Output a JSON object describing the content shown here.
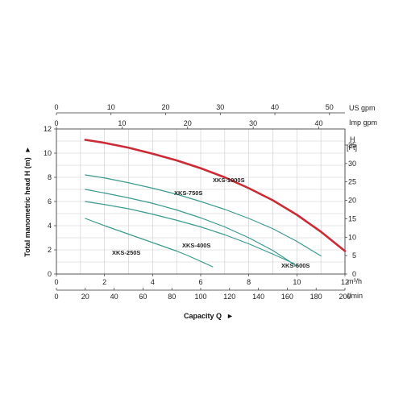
{
  "chart_data": {
    "type": "line",
    "title": "",
    "xlabel": "Capacity Q",
    "xlabel_arrow": "►",
    "ylabel": "Total manometric head H (m)",
    "ylabel_arrow": "►",
    "x_unit_m3h": "m³/h",
    "x_unit_lmin": "l/min",
    "top_unit_us": "US gpm",
    "top_unit_imp": "Imp gpm",
    "right_axis_label_line1": "H",
    "right_axis_label_line2": "[Ft]",
    "xlim_m3h": [
      0,
      12
    ],
    "ylim_m": [
      0,
      12
    ],
    "grid": true,
    "x_ticks_m3h": [
      0,
      2,
      4,
      6,
      8,
      10,
      12
    ],
    "y_ticks_m": [
      0,
      2,
      4,
      6,
      8,
      10,
      12
    ],
    "x_ticks_lmin": [
      0,
      20,
      40,
      60,
      80,
      100,
      120,
      140,
      160,
      180,
      200
    ],
    "x_ticks_us_gpm": [
      0,
      10,
      20,
      30,
      40,
      50
    ],
    "x_ticks_imp_gpm": [
      0,
      10,
      20,
      30,
      40
    ],
    "y_ticks_ft": [
      0,
      5,
      10,
      15,
      20,
      25,
      30,
      35
    ],
    "series": [
      {
        "name": "XKS-1000S",
        "color": "#cc2b36",
        "x": [
          1.2,
          2,
          3,
          4,
          5,
          6,
          7,
          8,
          9,
          10,
          11,
          12
        ],
        "y": [
          11.1,
          10.85,
          10.45,
          9.95,
          9.4,
          8.75,
          8.0,
          7.1,
          6.1,
          4.9,
          3.5,
          1.9
        ]
      },
      {
        "name": "XKS-750S",
        "color": "#3a9a8e",
        "x": [
          1.2,
          2,
          3,
          4,
          5,
          6,
          7,
          8,
          9,
          10,
          11
        ],
        "y": [
          8.2,
          7.95,
          7.55,
          7.1,
          6.6,
          6.0,
          5.35,
          4.6,
          3.75,
          2.7,
          1.5
        ]
      },
      {
        "name": "XKS-500S",
        "color": "#3a9a8e",
        "x": [
          1.2,
          2,
          3,
          4,
          5,
          6,
          7,
          8,
          9,
          10
        ],
        "y": [
          7.0,
          6.7,
          6.3,
          5.85,
          5.3,
          4.65,
          3.9,
          3.0,
          1.95,
          0.65
        ]
      },
      {
        "name": "XKS-400S",
        "color": "#3a9a8e",
        "x": [
          1.2,
          2,
          3,
          4,
          5,
          6,
          7,
          8,
          9,
          9.9
        ],
        "y": [
          6.0,
          5.75,
          5.4,
          4.95,
          4.45,
          3.9,
          3.25,
          2.5,
          1.65,
          0.85
        ]
      },
      {
        "name": "XKS-250S",
        "color": "#3a9a8e",
        "x": [
          1.2,
          2,
          3,
          4,
          5,
          5.5,
          6.0,
          6.5
        ],
        "y": [
          4.6,
          4.0,
          3.3,
          2.6,
          1.9,
          1.5,
          1.05,
          0.6
        ]
      }
    ]
  }
}
